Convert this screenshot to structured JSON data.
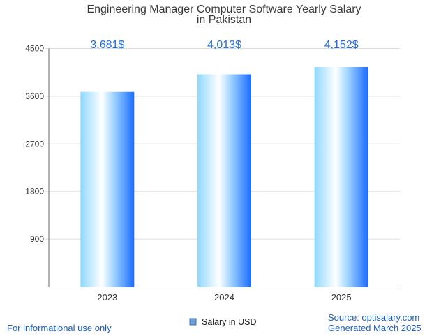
{
  "chart_data": {
    "type": "bar",
    "title_lines": [
      "Engineering Manager Computer Software Yearly Salary",
      "in Pakistan"
    ],
    "categories": [
      "2023",
      "2024",
      "2025"
    ],
    "values": [
      3681,
      4013,
      4152
    ],
    "data_labels": [
      "3,681$",
      "4,013$",
      "4,152$"
    ],
    "ylim": [
      0,
      4500
    ],
    "yticks": [
      900,
      1800,
      2700,
      3600,
      4500
    ],
    "ytick_labels": [
      "900",
      "1800",
      "2700",
      "3600",
      "4500"
    ],
    "series": [
      {
        "name": "Salary in USD",
        "values": [
          3681,
          4013,
          4152
        ]
      }
    ],
    "legend_position": "bottom",
    "grid": true,
    "colors": {
      "bar_light": "#e8f6ff",
      "bar_mid": "#7fd0ff",
      "bar_dark": "#1a6cff",
      "label": "#1f6fe0",
      "footer": "#1a5fc8"
    }
  },
  "footer": {
    "left": "For informational use only",
    "source": "Source: optisalary.com",
    "generated": "Generated March 2025"
  }
}
